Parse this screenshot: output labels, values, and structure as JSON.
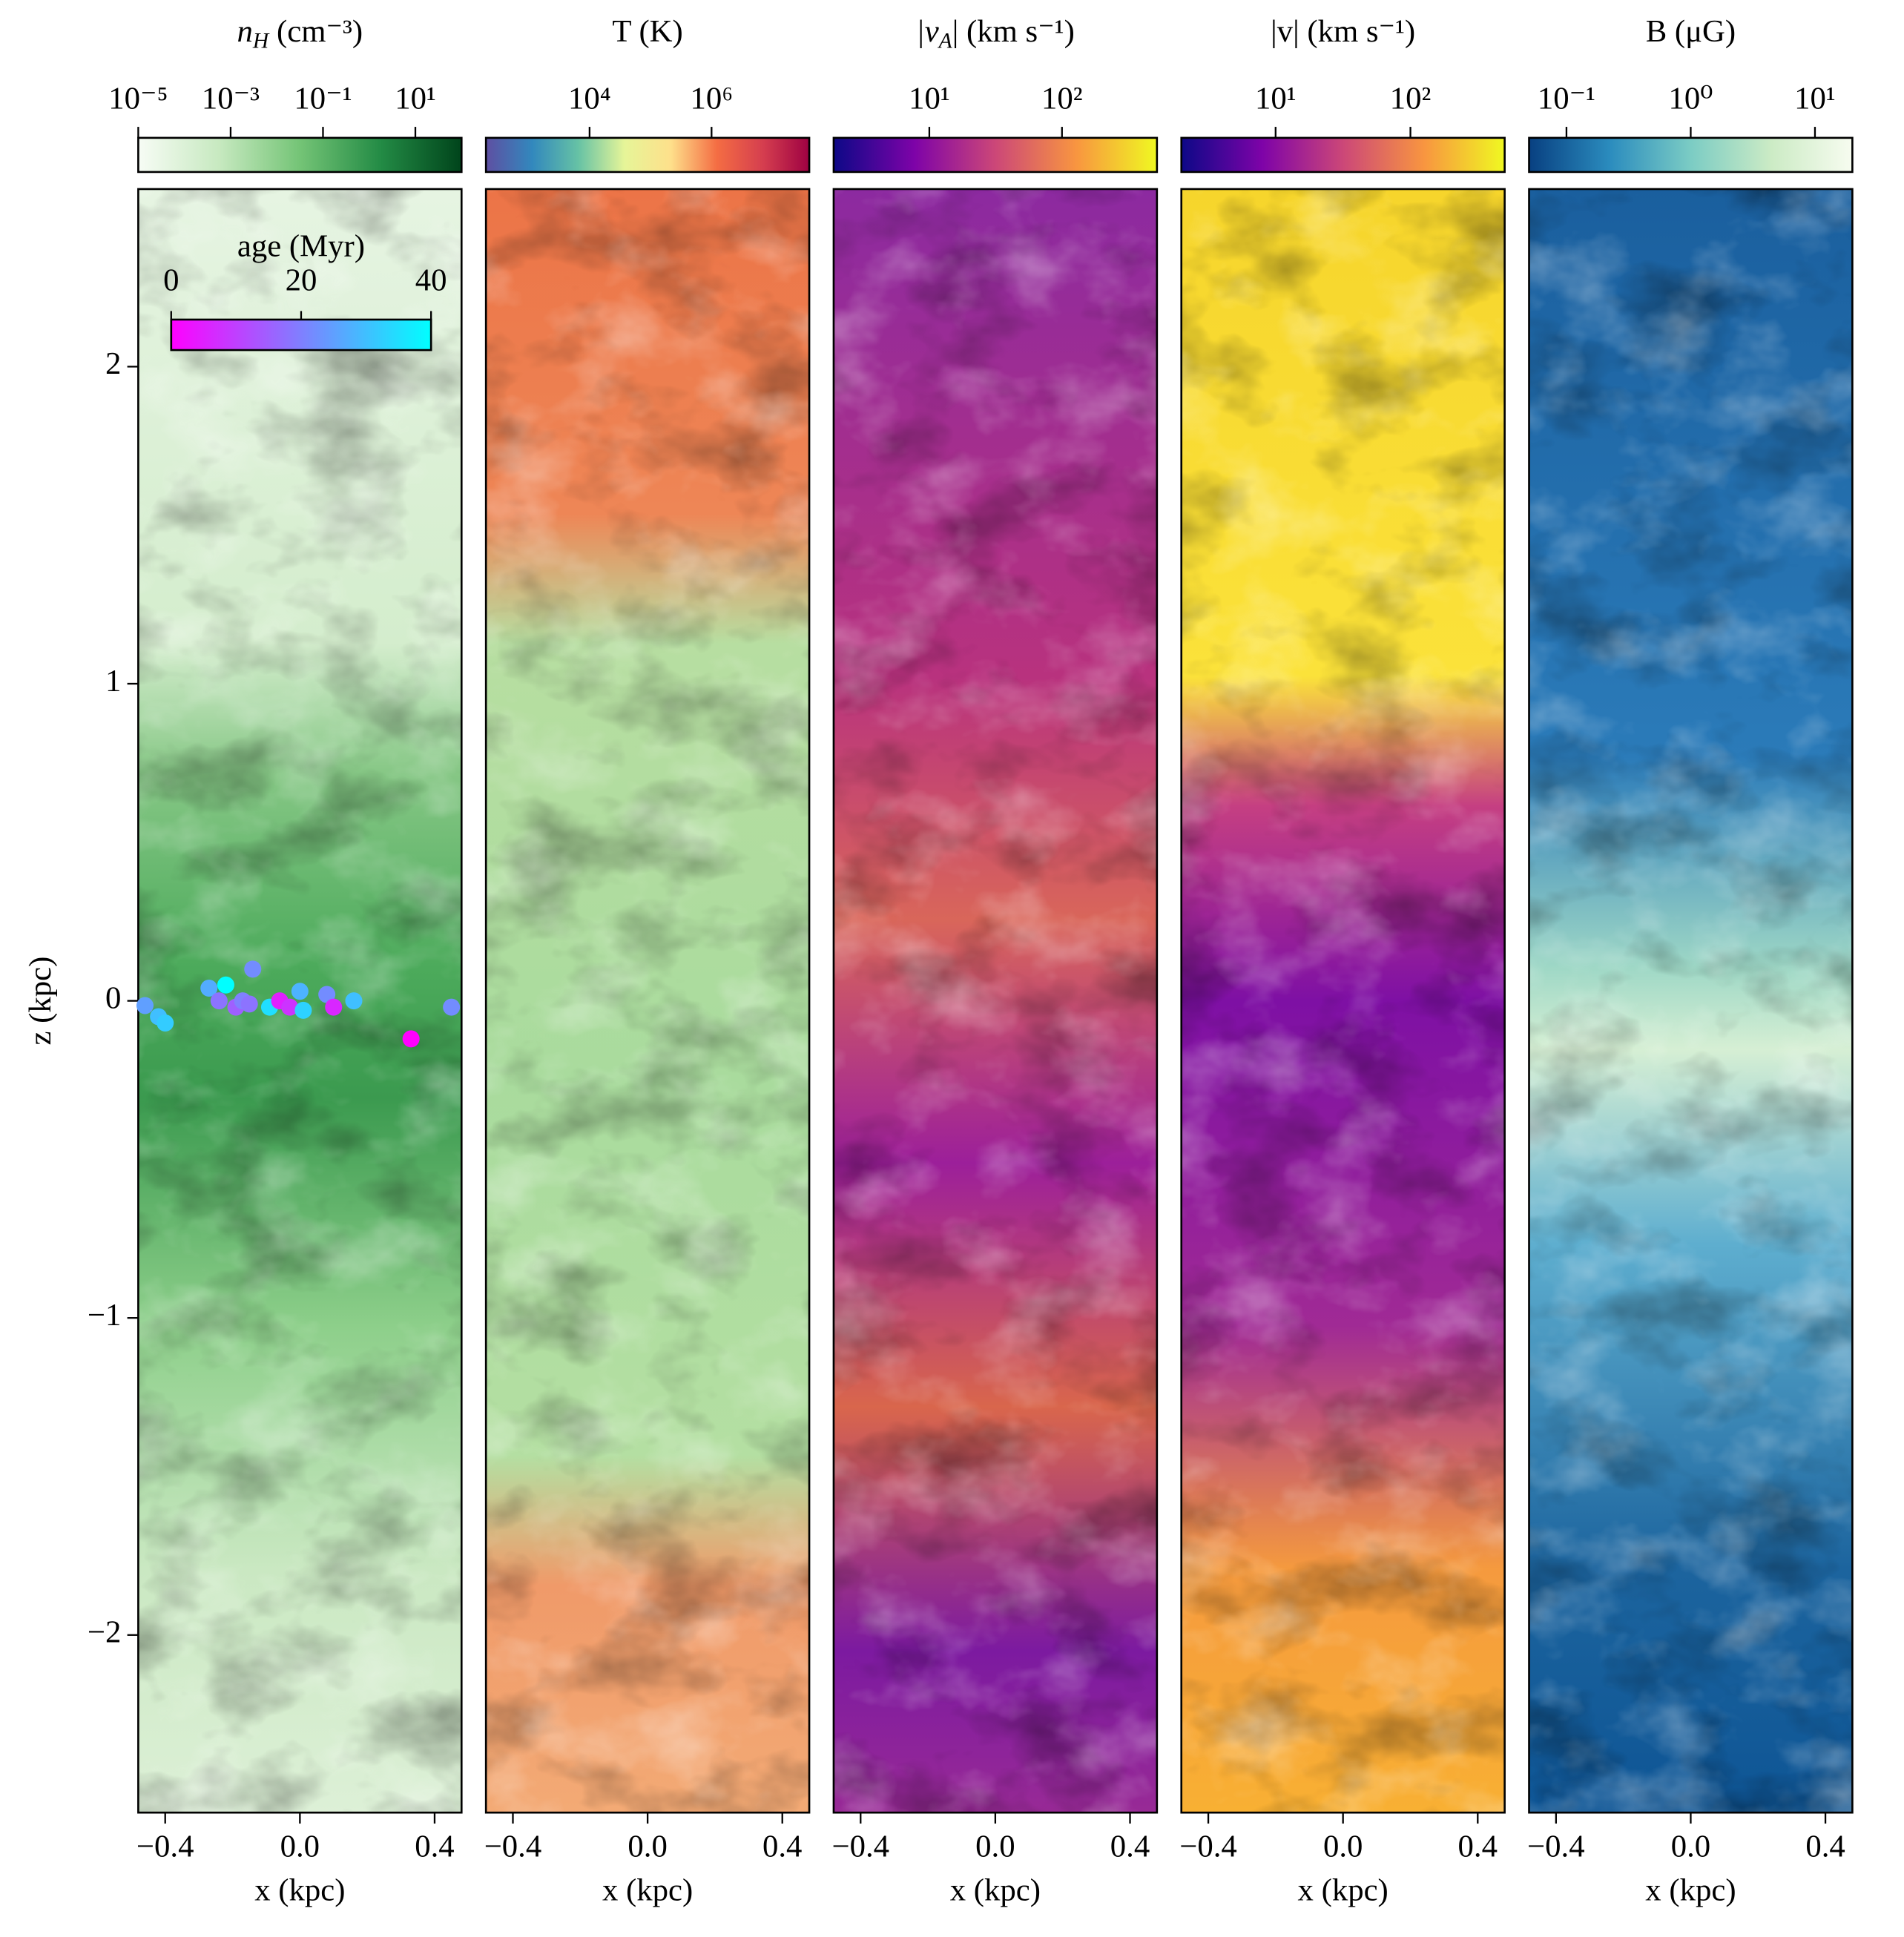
{
  "chart_data": [
    {
      "type": "heatmap",
      "title": "n",
      "title_sub": "H",
      "title_unit": " (cm⁻³)",
      "colorbar": {
        "log": true,
        "lim": [
          1e-05,
          100
        ],
        "colors": [
          "#f7fcf5",
          "#c7e9c0",
          "#74c476",
          "#238b45",
          "#00441b"
        ],
        "ticks": [
          {
            "value": 1e-05,
            "label": "10⁻⁵"
          },
          {
            "value": 0.001,
            "label": "10⁻³"
          },
          {
            "value": 0.1,
            "label": "10⁻¹"
          },
          {
            "value": 10,
            "label": "10¹"
          }
        ]
      },
      "xlabel": "x (kpc)",
      "ylabel": "z (kpc)",
      "xlim": [
        -0.48,
        0.48
      ],
      "ylim": [
        -2.56,
        2.56
      ],
      "xticks": [
        {
          "value": -0.4,
          "label": "−0.4"
        },
        {
          "value": 0,
          "label": "0.0"
        },
        0.4
      ],
      "yticks": [
        {
          "value": -2,
          "label": "−2"
        },
        {
          "value": -1,
          "label": "−1"
        },
        0,
        1,
        2
      ],
      "stars": {
        "x": [
          -0.46,
          -0.42,
          -0.4,
          -0.27,
          -0.24,
          -0.22,
          -0.19,
          -0.17,
          -0.14,
          -0.15,
          -0.09,
          -0.06,
          -0.03,
          0.0,
          0.01,
          0.08,
          0.1,
          0.16,
          0.33,
          0.45
        ],
        "y": [
          -0.015,
          -0.05,
          -0.07,
          0.04,
          0.0,
          0.05,
          -0.02,
          0.0,
          0.1,
          -0.01,
          -0.02,
          0.0,
          -0.02,
          0.03,
          -0.03,
          0.02,
          -0.02,
          0.0,
          -0.12,
          -0.02
        ],
        "age": [
          25,
          30,
          32,
          27,
          18,
          40,
          15,
          20,
          22,
          18,
          35,
          5,
          8,
          28,
          33,
          22,
          6,
          30,
          0,
          22
        ],
        "colorbar": {
          "label": "age (Myr)",
          "lim": [
            0,
            40
          ],
          "ticks": [
            0,
            20,
            40
          ],
          "colors": [
            "#ff00ff",
            "#00ffff"
          ]
        }
      }
    },
    {
      "type": "heatmap",
      "title": "T (K)",
      "colorbar": {
        "log": true,
        "lim": [
          200,
          40000000
        ],
        "colors": [
          "#5e4fa2",
          "#3288bd",
          "#66c2a5",
          "#e6f598",
          "#fee08b",
          "#f46d43",
          "#d53e4f",
          "#9e0142"
        ],
        "ticks": [
          {
            "value": 10000,
            "label": "10⁴"
          },
          {
            "value": 1000000,
            "label": "10⁶"
          }
        ]
      },
      "xlabel": "x (kpc)",
      "xlim": [
        -0.48,
        0.48
      ],
      "ylim": [
        -2.56,
        2.56
      ],
      "xticks": [
        {
          "value": -0.4,
          "label": "−0.4"
        },
        {
          "value": 0,
          "label": "0.0"
        },
        0.4
      ]
    },
    {
      "type": "heatmap",
      "title": "|v",
      "title_sub": "A",
      "title_unit": "| (km s⁻¹)",
      "colorbar": {
        "log": true,
        "lim": [
          1.9,
          520
        ],
        "colors": [
          "#0d0887",
          "#7e03a8",
          "#cc4778",
          "#f89540",
          "#f0f921"
        ],
        "ticks": [
          {
            "value": 10,
            "label": "10¹"
          },
          {
            "value": 100,
            "label": "10²"
          }
        ]
      },
      "xlabel": "x (kpc)",
      "xlim": [
        -0.48,
        0.48
      ],
      "ylim": [
        -2.56,
        2.56
      ],
      "xticks": [
        {
          "value": -0.4,
          "label": "−0.4"
        },
        {
          "value": 0,
          "label": "0.0"
        },
        0.4
      ]
    },
    {
      "type": "heatmap",
      "title": "|v| (km s⁻¹)",
      "colorbar": {
        "log": true,
        "lim": [
          2,
          500
        ],
        "colors": [
          "#0d0887",
          "#7e03a8",
          "#cc4778",
          "#f89540",
          "#f0f921"
        ],
        "ticks": [
          {
            "value": 10,
            "label": "10¹"
          },
          {
            "value": 100,
            "label": "10²"
          }
        ]
      },
      "xlabel": "x (kpc)",
      "xlim": [
        -0.48,
        0.48
      ],
      "ylim": [
        -2.56,
        2.56
      ],
      "xticks": [
        {
          "value": -0.4,
          "label": "−0.4"
        },
        {
          "value": 0,
          "label": "0.0"
        },
        0.4
      ]
    },
    {
      "type": "heatmap",
      "title": "B (μG)",
      "colorbar": {
        "log": true,
        "lim": [
          0.05,
          20
        ],
        "colors": [
          "#084081",
          "#2b8cbe",
          "#7bccc4",
          "#ccebc5",
          "#f7fcf0"
        ],
        "ticks": [
          {
            "value": 0.1,
            "label": "10⁻¹"
          },
          {
            "value": 1,
            "label": "10⁰"
          },
          {
            "value": 10,
            "label": "10¹"
          }
        ]
      },
      "xlabel": "x (kpc)",
      "xlim": [
        -0.48,
        0.48
      ],
      "ylim": [
        -2.56,
        2.56
      ],
      "xticks": [
        {
          "value": -0.4,
          "label": "−0.4"
        },
        {
          "value": 0,
          "label": "0.0"
        },
        0.4
      ]
    }
  ]
}
